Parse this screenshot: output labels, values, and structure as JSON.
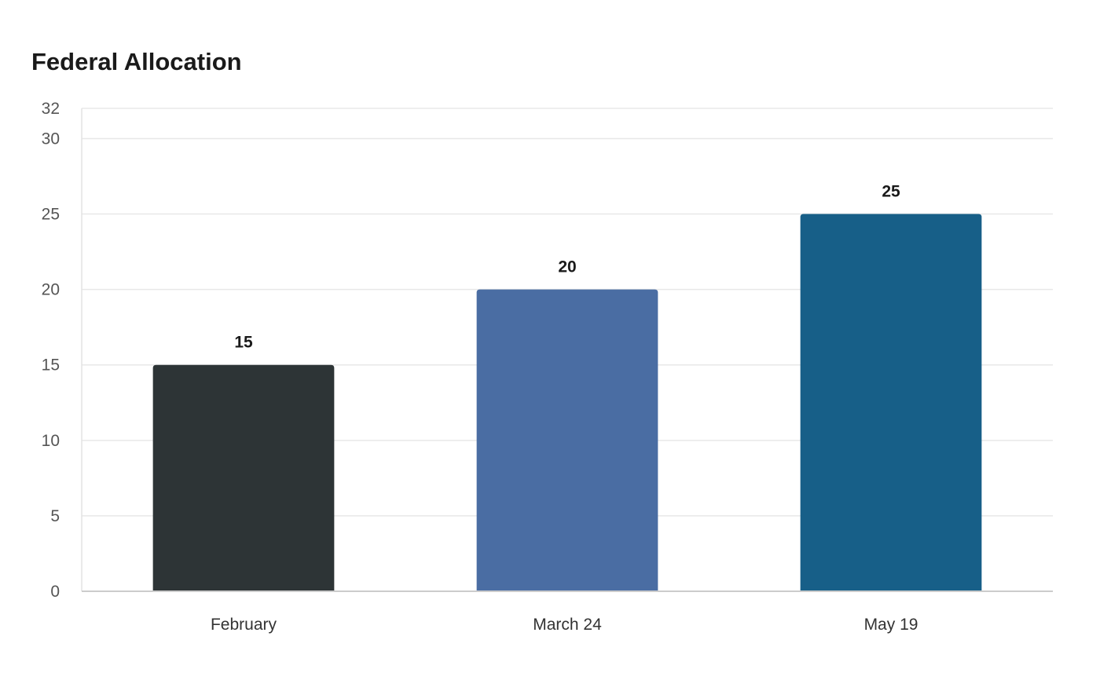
{
  "chart_data": {
    "type": "bar",
    "title": "Federal Allocation",
    "categories": [
      "February",
      "March 24",
      "May 19"
    ],
    "values": [
      15,
      20,
      25
    ],
    "colors": [
      "#2d3436",
      "#4a6da3",
      "#175f88"
    ],
    "xlabel": "",
    "ylabel": "",
    "ylim": [
      0,
      32
    ],
    "yticks": [
      0,
      5,
      10,
      15,
      20,
      25,
      30,
      32
    ],
    "grid": true,
    "data_labels": true
  }
}
